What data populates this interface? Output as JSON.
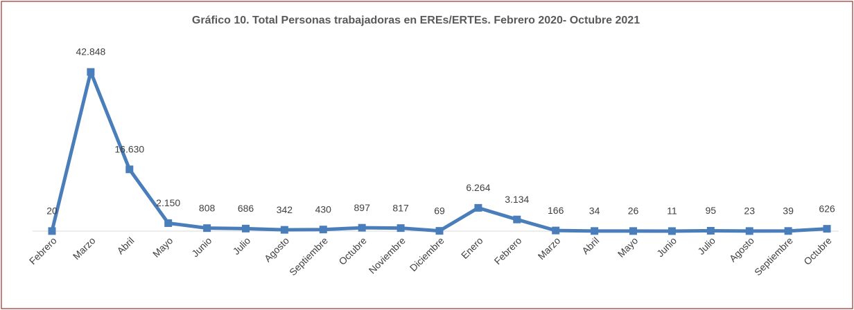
{
  "chart_data": {
    "type": "line",
    "title": "Gráfico 10. Total Personas trabajadoras en EREs/ERTEs. Febrero 2020- Octubre 2021",
    "categories": [
      "Febrero",
      "Marzo",
      "Abril",
      "Mayo",
      "Junio",
      "Julio",
      "Agosto",
      "Septiembre",
      "Octubre",
      "Noviembre",
      "Diciembre",
      "Enero",
      "Febrero",
      "Marzo",
      "Abril",
      "Mayo",
      "Junio",
      "Julio",
      "Agosto",
      "Septiembre",
      "Octubre"
    ],
    "values": [
      20,
      42848,
      16630,
      2150,
      808,
      686,
      342,
      430,
      897,
      817,
      69,
      6264,
      3134,
      166,
      34,
      26,
      11,
      95,
      23,
      39,
      626
    ],
    "value_labels": [
      "20",
      "42.848",
      "16.630",
      "2.150",
      "808",
      "686",
      "342",
      "430",
      "897",
      "817",
      "69",
      "6.264",
      "3.134",
      "166",
      "34",
      "26",
      "11",
      "95",
      "23",
      "39",
      "626"
    ],
    "color": "#4a7ebb"
  }
}
